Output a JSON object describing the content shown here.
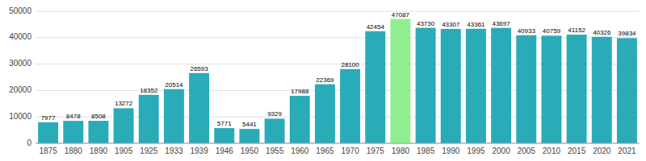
{
  "chart_data": {
    "type": "bar",
    "categories": [
      "1875",
      "1880",
      "1890",
      "1905",
      "1925",
      "1933",
      "1939",
      "1946",
      "1950",
      "1955",
      "1960",
      "1965",
      "1970",
      "1975",
      "1980",
      "1985",
      "1990",
      "1995",
      "2000",
      "2005",
      "2010",
      "2015",
      "2020",
      "2021"
    ],
    "values": [
      7977,
      8478,
      8508,
      13272,
      18352,
      20514,
      26593,
      5771,
      5441,
      9329,
      17988,
      22369,
      28100,
      42454,
      47087,
      43730,
      43307,
      43361,
      43697,
      40933,
      40759,
      41152,
      40326,
      39834
    ],
    "colors": [
      "#29ABB8",
      "#29ABB8",
      "#29ABB8",
      "#29ABB8",
      "#29ABB8",
      "#29ABB8",
      "#29ABB8",
      "#29ABB8",
      "#29ABB8",
      "#29ABB8",
      "#29ABB8",
      "#29ABB8",
      "#29ABB8",
      "#29ABB8",
      "#90EE90",
      "#29ABB8",
      "#29ABB8",
      "#29ABB8",
      "#29ABB8",
      "#29ABB8",
      "#29ABB8",
      "#29ABB8",
      "#29ABB8",
      "#29ABB8"
    ],
    "ylim": [
      0,
      50000
    ],
    "yticks": [
      0,
      10000,
      20000,
      30000,
      40000,
      50000
    ],
    "grid": true,
    "data_labels": true
  }
}
